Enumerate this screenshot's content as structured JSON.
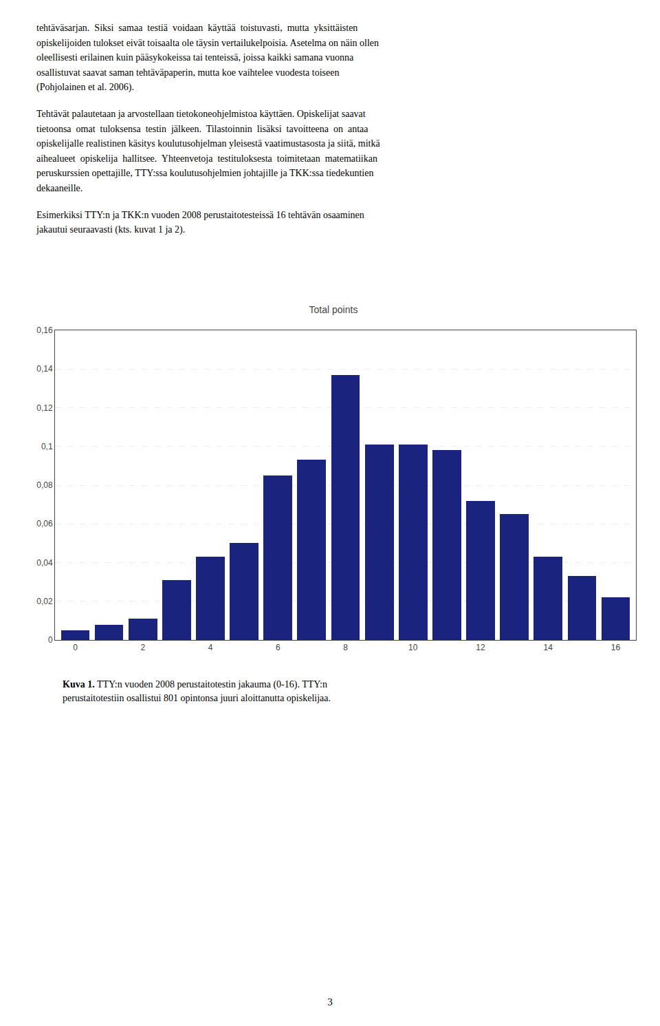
{
  "chart_data": {
    "type": "bar",
    "title": "Total points",
    "x": [
      0,
      1,
      2,
      3,
      4,
      5,
      6,
      7,
      8,
      9,
      10,
      11,
      12,
      13,
      14,
      15,
      16
    ],
    "values": [
      0.005,
      0.008,
      0.011,
      0.031,
      0.043,
      0.05,
      0.085,
      0.093,
      0.137,
      0.101,
      0.101,
      0.098,
      0.072,
      0.065,
      0.043,
      0.033,
      0.022
    ],
    "color": "#1a237e",
    "xlim": [
      -0.6,
      16.6
    ],
    "ylim": [
      0,
      0.16
    ],
    "xticks": [
      0,
      2,
      4,
      6,
      8,
      10,
      12,
      14,
      16
    ],
    "yticks": [
      0,
      {
        "value": 0.02,
        "label": "0,02"
      },
      {
        "value": 0.04,
        "label": "0,04"
      },
      {
        "value": 0.06,
        "label": "0,06"
      },
      {
        "value": 0.08,
        "label": "0,08"
      },
      {
        "value": 0.1,
        "label": "0,1"
      },
      {
        "value": 0.12,
        "label": "0,12"
      },
      {
        "value": 0.14,
        "label": "0,14"
      },
      {
        "value": 0.16,
        "label": "0,16"
      }
    ],
    "grid": true,
    "annotations": [
      "tehtäväsarjan.  Siksi  samaa  testiä  voidaan  käyttää  toistuvasti,  mutta  yksittäisten\nopiskelijoiden tulokset eivät toisaalta ole täysin vertailukelpoisia. Asetelma on näin ollen\noleellisesti erilainen kuin pääsykokeissa tai tenteissä, joissa kaikki samana vuonna\nosallistuvat saavat saman tehtäväpaperin, mutta koe vaihtelee vuodesta toiseen\n(Pohjolainen et al. 2006).",
      "Tehtävät palautetaan ja arvostellaan tietokoneohjelmistoa käyttäen. Opiskelijat saavat\ntietoonsa  omat  tuloksensa  testin  jälkeen.  Tilastoinnin  lisäksi  tavoitteena  on  antaa\nopiskelijalle realistinen käsitys koulutusohjelman yleisestä vaatimustasosta ja siitä, mitkä\naihealueet  opiskelija  hallitsee.  Yhteenvetoja  testituloksesta  toimitetaan  matematiikan\nperuskurssien opettajille, TTY:ssa koulutusohjelmien johtajille ja TKK:ssa tiedekuntien\ndekaaneille.",
      "Esimerkiksi TTY:n ja TKK:n vuoden 2008 perustaitotesteissä 16 tehtävän osaaminen\njakautui seuraavasti (kts. kuvat 1 ja 2).",
      "Kuva 1. TTY:n vuoden 2008 perustaitotestin jakauma (0-16). TTY:n\nperustaitotestiin osallistui 801 opintonsa juuri aloittanutta opiskelijaa.",
      "3"
    ]
  }
}
